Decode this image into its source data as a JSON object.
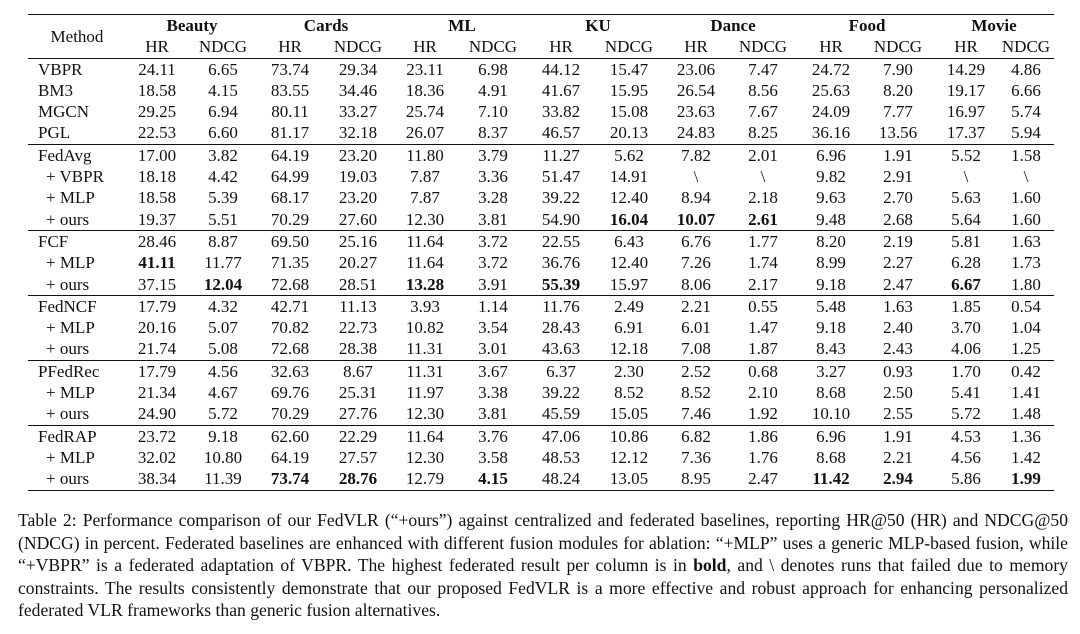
{
  "table": {
    "method_header": "Method",
    "groups": [
      "Beauty",
      "Cards",
      "ML",
      "KU",
      "Dance",
      "Food",
      "Movie"
    ],
    "metrics": [
      "HR",
      "NDCG"
    ],
    "rows": [
      {
        "method": "VBPR",
        "sub": false,
        "values": [
          "24.11",
          "6.65",
          "73.74",
          "29.34",
          "23.11",
          "6.98",
          "44.12",
          "15.47",
          "23.06",
          "7.47",
          "24.72",
          "7.90",
          "14.29",
          "4.86"
        ],
        "bold": []
      },
      {
        "method": "BM3",
        "sub": false,
        "values": [
          "18.58",
          "4.15",
          "83.55",
          "34.46",
          "18.36",
          "4.91",
          "41.67",
          "15.95",
          "26.54",
          "8.56",
          "25.63",
          "8.20",
          "19.17",
          "6.66"
        ],
        "bold": []
      },
      {
        "method": "MGCN",
        "sub": false,
        "values": [
          "29.25",
          "6.94",
          "80.11",
          "33.27",
          "25.74",
          "7.10",
          "33.82",
          "15.08",
          "23.63",
          "7.67",
          "24.09",
          "7.77",
          "16.97",
          "5.74"
        ],
        "bold": []
      },
      {
        "method": "PGL",
        "sub": false,
        "values": [
          "22.53",
          "6.60",
          "81.17",
          "32.18",
          "26.07",
          "8.37",
          "46.57",
          "20.13",
          "24.83",
          "8.25",
          "36.16",
          "13.56",
          "17.37",
          "5.94"
        ],
        "bold": []
      },
      {
        "method": "FedAvg",
        "sub": false,
        "group_start": true,
        "values": [
          "17.00",
          "3.82",
          "64.19",
          "23.20",
          "11.80",
          "3.79",
          "11.27",
          "5.62",
          "7.82",
          "2.01",
          "6.96",
          "1.91",
          "5.52",
          "1.58"
        ],
        "bold": []
      },
      {
        "method": "+ VBPR",
        "sub": true,
        "values": [
          "18.18",
          "4.42",
          "64.99",
          "19.03",
          "7.87",
          "3.36",
          "51.47",
          "14.91",
          "\\",
          "\\",
          "9.82",
          "2.91",
          "\\",
          "\\"
        ],
        "bold": []
      },
      {
        "method": "+ MLP",
        "sub": true,
        "values": [
          "18.58",
          "5.39",
          "68.17",
          "23.20",
          "7.87",
          "3.28",
          "39.22",
          "12.40",
          "8.94",
          "2.18",
          "9.63",
          "2.70",
          "5.63",
          "1.60"
        ],
        "bold": []
      },
      {
        "method": "+ ours",
        "sub": true,
        "values": [
          "19.37",
          "5.51",
          "70.29",
          "27.60",
          "12.30",
          "3.81",
          "54.90",
          "16.04",
          "10.07",
          "2.61",
          "9.48",
          "2.68",
          "5.64",
          "1.60"
        ],
        "bold": [
          7,
          8,
          9
        ]
      },
      {
        "method": "FCF",
        "sub": false,
        "values": [
          "28.46",
          "8.87",
          "69.50",
          "25.16",
          "11.64",
          "3.72",
          "22.55",
          "6.43",
          "6.76",
          "1.77",
          "8.20",
          "2.19",
          "5.81",
          "1.63"
        ],
        "bold": []
      },
      {
        "method": "+ MLP",
        "sub": true,
        "values": [
          "41.11",
          "11.77",
          "71.35",
          "20.27",
          "11.64",
          "3.72",
          "36.76",
          "12.40",
          "7.26",
          "1.74",
          "8.99",
          "2.27",
          "6.28",
          "1.73"
        ],
        "bold": [
          0
        ]
      },
      {
        "method": "+ ours",
        "sub": true,
        "values": [
          "37.15",
          "12.04",
          "72.68",
          "28.51",
          "13.28",
          "3.91",
          "55.39",
          "15.97",
          "8.06",
          "2.17",
          "9.18",
          "2.47",
          "6.67",
          "1.80"
        ],
        "bold": [
          1,
          4,
          6,
          12
        ]
      },
      {
        "method": "FedNCF",
        "sub": false,
        "values": [
          "17.79",
          "4.32",
          "42.71",
          "11.13",
          "3.93",
          "1.14",
          "11.76",
          "2.49",
          "2.21",
          "0.55",
          "5.48",
          "1.63",
          "1.85",
          "0.54"
        ],
        "bold": []
      },
      {
        "method": "+ MLP",
        "sub": true,
        "values": [
          "20.16",
          "5.07",
          "70.82",
          "22.73",
          "10.82",
          "3.54",
          "28.43",
          "6.91",
          "6.01",
          "1.47",
          "9.18",
          "2.40",
          "3.70",
          "1.04"
        ],
        "bold": []
      },
      {
        "method": "+ ours",
        "sub": true,
        "values": [
          "21.74",
          "5.08",
          "72.68",
          "28.38",
          "11.31",
          "3.01",
          "43.63",
          "12.18",
          "7.08",
          "1.87",
          "8.43",
          "2.43",
          "4.06",
          "1.25"
        ],
        "bold": []
      },
      {
        "method": "PFedRec",
        "sub": false,
        "values": [
          "17.79",
          "4.56",
          "32.63",
          "8.67",
          "11.31",
          "3.67",
          "6.37",
          "2.30",
          "2.52",
          "0.68",
          "3.27",
          "0.93",
          "1.70",
          "0.42"
        ],
        "bold": []
      },
      {
        "method": "+ MLP",
        "sub": true,
        "values": [
          "21.34",
          "4.67",
          "69.76",
          "25.31",
          "11.97",
          "3.38",
          "39.22",
          "8.52",
          "8.52",
          "2.10",
          "8.68",
          "2.50",
          "5.41",
          "1.41"
        ],
        "bold": []
      },
      {
        "method": "+ ours",
        "sub": true,
        "values": [
          "24.90",
          "5.72",
          "70.29",
          "27.76",
          "12.30",
          "3.81",
          "45.59",
          "15.05",
          "7.46",
          "1.92",
          "10.10",
          "2.55",
          "5.72",
          "1.48"
        ],
        "bold": []
      },
      {
        "method": "FedRAP",
        "sub": false,
        "values": [
          "23.72",
          "9.18",
          "62.60",
          "22.29",
          "11.64",
          "3.76",
          "47.06",
          "10.86",
          "6.82",
          "1.86",
          "6.96",
          "1.91",
          "4.53",
          "1.36"
        ],
        "bold": []
      },
      {
        "method": "+ MLP",
        "sub": true,
        "values": [
          "32.02",
          "10.80",
          "64.19",
          "27.57",
          "12.30",
          "3.58",
          "48.53",
          "12.12",
          "7.36",
          "1.76",
          "8.68",
          "2.21",
          "4.56",
          "1.42"
        ],
        "bold": []
      },
      {
        "method": "+ ours",
        "sub": true,
        "values": [
          "38.34",
          "11.39",
          "73.74",
          "28.76",
          "12.79",
          "4.15",
          "48.24",
          "13.05",
          "8.95",
          "2.47",
          "11.42",
          "2.94",
          "5.86",
          "1.99"
        ],
        "bold": [
          2,
          3,
          5,
          10,
          11,
          13
        ]
      }
    ]
  },
  "caption": {
    "part1": "Table 2: Performance comparison of our FedVLR (“+ours”) against centralized and federated baselines, reporting HR@50 (HR) and NDCG@50 (NDCG) in percent. Federated baselines are enhanced with different fusion modules for ablation: “+MLP” uses a generic MLP-based fusion, while “+VBPR” is a federated adaptation of VBPR. The highest federated result per column is in ",
    "bold_word": "bold",
    "part2": ", and \\ denotes runs that failed due to memory constraints. The results consistently demonstrate that our proposed FedVLR is a more effective and robust approach for enhancing personalized federated VLR frameworks than generic fusion alternatives."
  }
}
